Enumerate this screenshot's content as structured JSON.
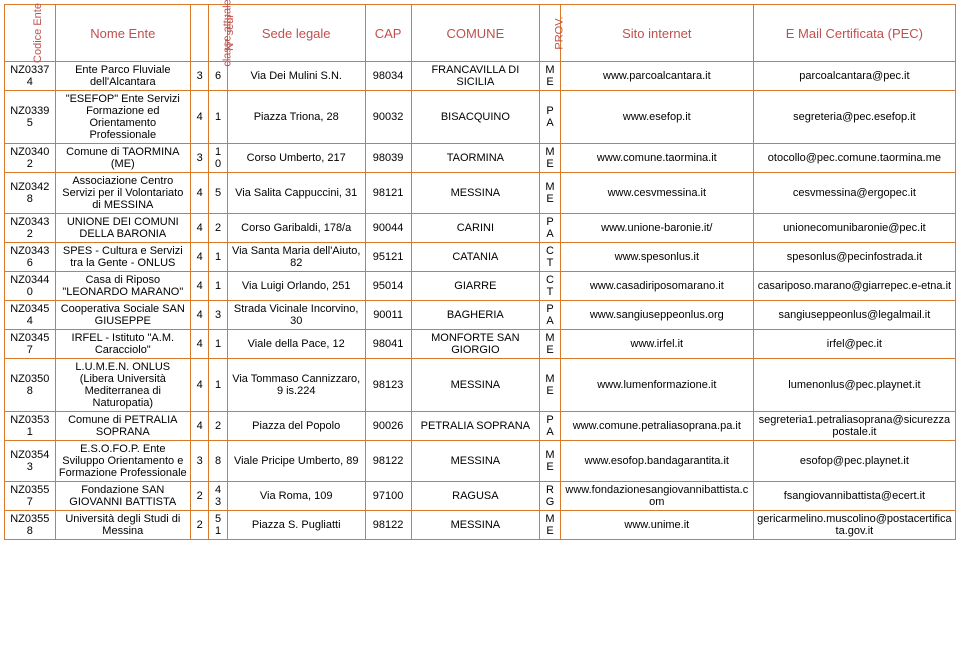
{
  "headers": {
    "codice": "Codice Ente",
    "nome": "Nome Ente",
    "classe": "classe attuale",
    "sedi": "N° sedi",
    "sede": "Sede legale",
    "cap": "CAP",
    "comune": "COMUNE",
    "prov": "PROV.",
    "sito": "Sito internet",
    "pec": "E Mail Certificata (PEC)"
  },
  "rows": [
    {
      "codice": "NZ03374",
      "nome": "Ente Parco Fluviale dell'Alcantara",
      "classe": "3",
      "sedi": "6",
      "sede": "Via Dei Mulini S.N.",
      "cap": "98034",
      "comune": "FRANCAVILLA DI SICILIA",
      "prov": "ME",
      "sito": "www.parcoalcantara.it",
      "pec": "parcoalcantara@pec.it"
    },
    {
      "codice": "NZ03395",
      "nome": "\"ESEFOP\" Ente Servizi Formazione ed Orientamento Professionale",
      "classe": "4",
      "sedi": "1",
      "sede": "Piazza Triona, 28",
      "cap": "90032",
      "comune": "BISACQUINO",
      "prov": "PA",
      "sito": "www.esefop.it",
      "pec": "segreteria@pec.esefop.it"
    },
    {
      "codice": "NZ03402",
      "nome": "Comune di TAORMINA (ME)",
      "classe": "3",
      "sedi": "10",
      "sede": "Corso Umberto, 217",
      "cap": "98039",
      "comune": "TAORMINA",
      "prov": "ME",
      "sito": "www.comune.taormina.it",
      "pec": "otocollo@pec.comune.taormina.me"
    },
    {
      "codice": "NZ03428",
      "nome": "Associazione Centro Servizi per il Volontariato di MESSINA",
      "classe": "4",
      "sedi": "5",
      "sede": "Via Salita Cappuccini, 31",
      "cap": "98121",
      "comune": "MESSINA",
      "prov": "ME",
      "sito": "www.cesvmessina.it",
      "pec": "cesvmessina@ergopec.it"
    },
    {
      "codice": "NZ03432",
      "nome": "UNIONE DEI COMUNI DELLA BARONIA",
      "classe": "4",
      "sedi": "2",
      "sede": "Corso Garibaldi, 178/a",
      "cap": "90044",
      "comune": "CARINI",
      "prov": "PA",
      "sito": "www.unione-baronie.it/",
      "pec": "unionecomunibaronie@pec.it"
    },
    {
      "codice": "NZ03436",
      "nome": "SPES - Cultura e Servizi tra la Gente - ONLUS",
      "classe": "4",
      "sedi": "1",
      "sede": "Via Santa Maria dell'Aiuto, 82",
      "cap": "95121",
      "comune": "CATANIA",
      "prov": "CT",
      "sito": "www.spesonlus.it",
      "pec": "spesonlus@pecinfostrada.it"
    },
    {
      "codice": "NZ03440",
      "nome": "Casa di Riposo \"LEONARDO MARANO\"",
      "classe": "4",
      "sedi": "1",
      "sede": "Via Luigi Orlando, 251",
      "cap": "95014",
      "comune": "GIARRE",
      "prov": "CT",
      "sito": "www.casadiriposomarano.it",
      "pec": "casariposo.marano@giarrepec.e-etna.it"
    },
    {
      "codice": "NZ03454",
      "nome": "Cooperativa Sociale SAN GIUSEPPE",
      "classe": "4",
      "sedi": "3",
      "sede": "Strada Vicinale Incorvino, 30",
      "cap": "90011",
      "comune": "BAGHERIA",
      "prov": "PA",
      "sito": "www.sangiuseppeonlus.org",
      "pec": "sangiuseppeonlus@legalmail.it"
    },
    {
      "codice": "NZ03457",
      "nome": "IRFEL - Istituto \"A.M. Caracciolo\"",
      "classe": "4",
      "sedi": "1",
      "sede": "Viale della Pace, 12",
      "cap": "98041",
      "comune": "MONFORTE SAN GIORGIO",
      "prov": "ME",
      "sito": "www.irfel.it",
      "pec": "irfel@pec.it"
    },
    {
      "codice": "NZ03508",
      "nome": "L.U.M.E.N. ONLUS (Libera Università Mediterranea di Naturopatia)",
      "classe": "4",
      "sedi": "1",
      "sede": "Via Tommaso Cannizzaro, 9 is.224",
      "cap": "98123",
      "comune": "MESSINA",
      "prov": "ME",
      "sito": "www.lumenformazione.it",
      "pec": "lumenonlus@pec.playnet.it"
    },
    {
      "codice": "NZ03531",
      "nome": "Comune di PETRALIA SOPRANA",
      "classe": "4",
      "sedi": "2",
      "sede": "Piazza del Popolo",
      "cap": "90026",
      "comune": "PETRALIA SOPRANA",
      "prov": "PA",
      "sito": "www.comune.petraliasoprana.pa.it",
      "pec": "segreteria1.petraliasoprana@sicurezzapostale.it"
    },
    {
      "codice": "NZ03543",
      "nome": "E.S.O.FO.P. Ente Sviluppo Orientamento e Formazione Professionale",
      "classe": "3",
      "sedi": "8",
      "sede": "Viale Pricipe Umberto, 89",
      "cap": "98122",
      "comune": "MESSINA",
      "prov": "ME",
      "sito": "www.esofop.bandagarantita.it",
      "pec": "esofop@pec.playnet.it"
    },
    {
      "codice": "NZ03557",
      "nome": "Fondazione SAN GIOVANNI BATTISTA",
      "classe": "2",
      "sedi": "43",
      "sede": "Via Roma, 109",
      "cap": "97100",
      "comune": "RAGUSA",
      "prov": "RG",
      "sito": "www.fondazionesangiovannibattista.com",
      "pec": "fsangiovannibattista@ecert.it"
    },
    {
      "codice": "NZ03558",
      "nome": "Università degli Studi di Messina",
      "classe": "2",
      "sedi": "51",
      "sede": "Piazza S. Pugliatti",
      "cap": "98122",
      "comune": "MESSINA",
      "prov": "ME",
      "sito": "www.unime.it",
      "pec": "gericarmelino.muscolino@postacertificata.gov.it"
    }
  ]
}
